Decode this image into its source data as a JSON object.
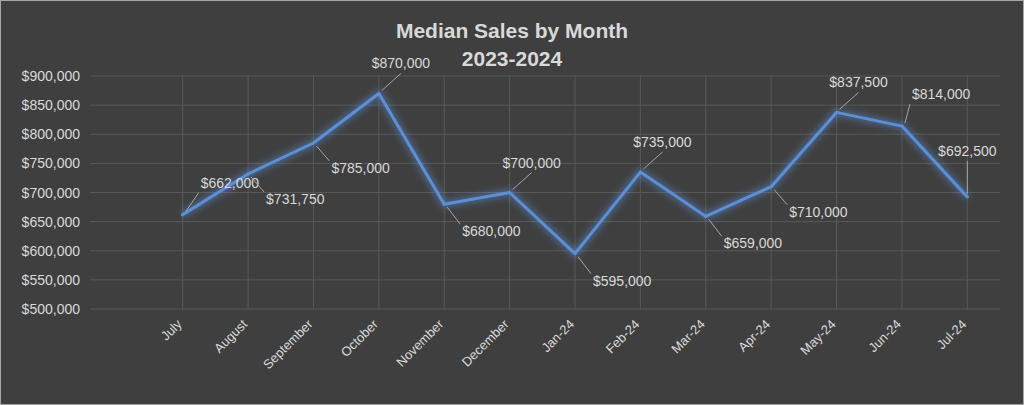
{
  "chart_data": {
    "type": "line",
    "title": "Median Sales by Month",
    "subtitle": "2023-2024",
    "categories": [
      "July",
      "August",
      "September",
      "October",
      "November",
      "December",
      "Jan-24",
      "Feb-24",
      "Mar-24",
      "Apr-24",
      "May-24",
      "Jun-24",
      "Jul-24"
    ],
    "values": [
      662000,
      731750,
      785000,
      870000,
      680000,
      700000,
      595000,
      735000,
      659000,
      710000,
      837500,
      814000,
      692500
    ],
    "value_labels": [
      "$662,000",
      "$731,750",
      "$785,000",
      "$870,000",
      "$680,000",
      "$700,000",
      "$595,000",
      "$735,000",
      "$659,000",
      "$710,000",
      "$837,500",
      "$814,000",
      "$692,500"
    ],
    "color": "#5b8fd6",
    "ylim": [
      500000,
      900000
    ],
    "yticks": [
      {
        "value": 500000,
        "label": "$500,000"
      },
      {
        "value": 550000,
        "label": "$550,000"
      },
      {
        "value": 600000,
        "label": "$600,000"
      },
      {
        "value": 650000,
        "label": "$650,000"
      },
      {
        "value": 700000,
        "label": "$700,000"
      },
      {
        "value": 750000,
        "label": "$750,000"
      },
      {
        "value": 800000,
        "label": "$800,000"
      },
      {
        "value": 850000,
        "label": "$850,000"
      },
      {
        "value": 900000,
        "label": "$900,000"
      }
    ],
    "grid": true,
    "data_labels": true
  }
}
